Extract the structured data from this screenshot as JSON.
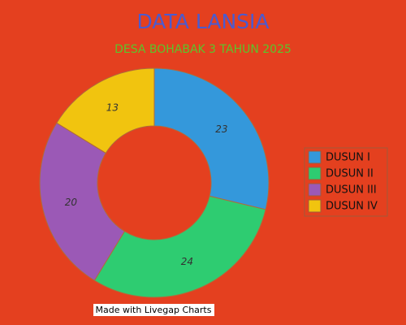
{
  "chart_data": {
    "type": "doughnut",
    "title": "DATA LANSIA",
    "subtitle": "DESA BOHABAK 3 TAHUN 2025",
    "categories": [
      "DUSUN I",
      "DUSUN II",
      "DUSUN III",
      "DUSUN IV"
    ],
    "values": [
      23,
      24,
      20,
      13
    ],
    "colors": [
      "#3498db",
      "#2ecc71",
      "#9b59b6",
      "#f1c40f"
    ],
    "legend": "right",
    "watermark": "Made with Livegap Charts"
  }
}
